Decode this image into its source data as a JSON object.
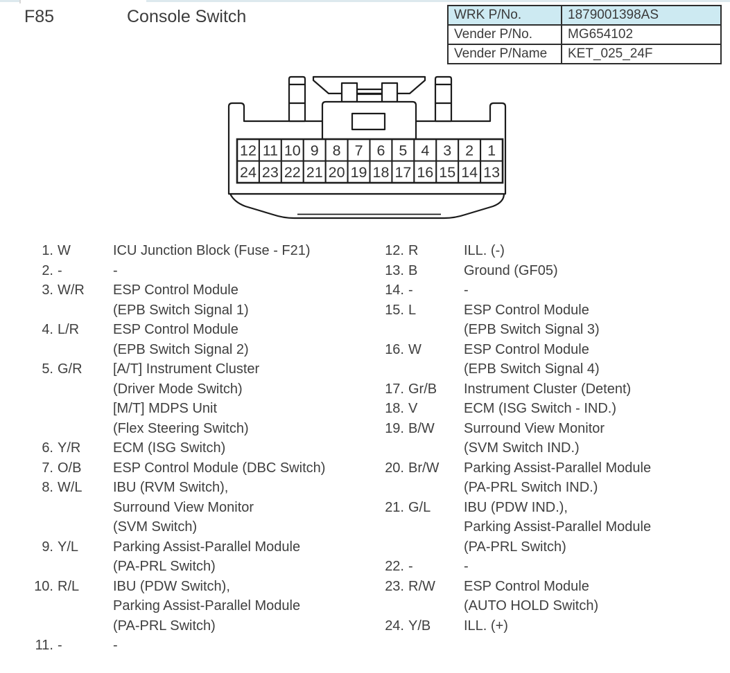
{
  "page": {
    "connector_id": "F85",
    "title": "Console Switch"
  },
  "info_table": {
    "rows": [
      {
        "label": "WRK P/No.",
        "value": "1879001398AS",
        "highlight": true
      },
      {
        "label": "Vender P/No.",
        "value": "MG654102",
        "highlight": false
      },
      {
        "label": "Vender P/Name",
        "value": "KET_025_24F",
        "highlight": false
      }
    ]
  },
  "connector": {
    "top_row_pins": [
      12,
      11,
      10,
      9,
      8,
      7,
      6,
      5,
      4,
      3,
      2,
      1
    ],
    "bottom_row_pins": [
      24,
      23,
      22,
      21,
      20,
      19,
      18,
      17,
      16,
      15,
      14,
      13
    ]
  },
  "pinout": {
    "left": [
      {
        "pin": "1",
        "wire": "W",
        "lines": [
          "ICU Junction Block (Fuse - F21)"
        ]
      },
      {
        "pin": "2",
        "wire": "-",
        "lines": [
          "-"
        ]
      },
      {
        "pin": "3",
        "wire": "W/R",
        "lines": [
          "ESP Control Module",
          "(EPB Switch Signal 1)"
        ]
      },
      {
        "pin": "4",
        "wire": "L/R",
        "lines": [
          "ESP Control Module",
          "(EPB Switch Signal 2)"
        ]
      },
      {
        "pin": "5",
        "wire": "G/R",
        "lines": [
          "[A/T] Instrument Cluster",
          "(Driver Mode Switch)",
          "[M/T] MDPS Unit",
          "(Flex Steering Switch)"
        ]
      },
      {
        "pin": "6",
        "wire": "Y/R",
        "lines": [
          "ECM (ISG Switch)"
        ]
      },
      {
        "pin": "7",
        "wire": "O/B",
        "lines": [
          "ESP Control Module (DBC Switch)"
        ]
      },
      {
        "pin": "8",
        "wire": "W/L",
        "lines": [
          "IBU (RVM Switch),",
          "Surround View Monitor",
          "(SVM Switch)"
        ]
      },
      {
        "pin": "9",
        "wire": "Y/L",
        "lines": [
          "Parking Assist-Parallel Module",
          "(PA-PRL Switch)"
        ]
      },
      {
        "pin": "10",
        "wire": "R/L",
        "lines": [
          "IBU (PDW Switch),",
          "Parking Assist-Parallel Module",
          "(PA-PRL Switch)"
        ]
      },
      {
        "pin": "11",
        "wire": "-",
        "lines": [
          "-"
        ]
      }
    ],
    "right": [
      {
        "pin": "12",
        "wire": "R",
        "lines": [
          "ILL. (-)"
        ]
      },
      {
        "pin": "13",
        "wire": "B",
        "lines": [
          "Ground (GF05)"
        ]
      },
      {
        "pin": "14",
        "wire": "-",
        "lines": [
          "-"
        ]
      },
      {
        "pin": "15",
        "wire": "L",
        "lines": [
          "ESP Control Module",
          "(EPB Switch Signal 3)"
        ]
      },
      {
        "pin": "16",
        "wire": "W",
        "lines": [
          "ESP Control Module",
          "(EPB Switch Signal 4)"
        ]
      },
      {
        "pin": "17",
        "wire": "Gr/B",
        "lines": [
          "Instrument Cluster (Detent)"
        ]
      },
      {
        "pin": "18",
        "wire": "V",
        "lines": [
          "ECM (ISG Switch - IND.)"
        ]
      },
      {
        "pin": "19",
        "wire": "B/W",
        "lines": [
          "Surround View Monitor",
          "(SVM Switch IND.)"
        ]
      },
      {
        "pin": "20",
        "wire": "Br/W",
        "lines": [
          "Parking Assist-Parallel Module",
          "(PA-PRL Switch IND.)"
        ]
      },
      {
        "pin": "21",
        "wire": "G/L",
        "lines": [
          "IBU (PDW IND.),",
          "Parking Assist-Parallel Module",
          "(PA-PRL Switch)"
        ]
      },
      {
        "pin": "22",
        "wire": "-",
        "lines": [
          "-"
        ]
      },
      {
        "pin": "23",
        "wire": "R/W",
        "lines": [
          "ESP Control Module",
          "(AUTO HOLD Switch)"
        ]
      },
      {
        "pin": "24",
        "wire": "Y/B",
        "lines": [
          "ILL. (+)"
        ]
      }
    ]
  },
  "colors": {
    "table_highlight_bg": "#cdeaf2",
    "table_border": "#2d2d2d",
    "text": "#3f3f3f",
    "diagram_stroke": "#1b1b1b"
  }
}
